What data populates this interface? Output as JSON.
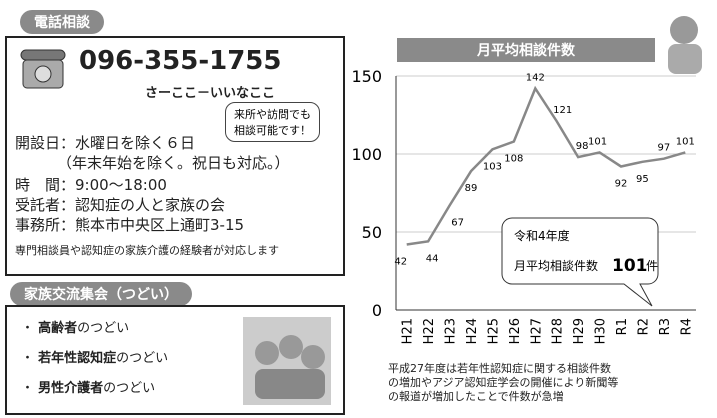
{
  "phone": {
    "badge": "電話相談",
    "number": "096-355-1755",
    "reading": "さーここ－いいなここ",
    "bubble": [
      "来所や訪問でも",
      "相談可能です！"
    ],
    "lines": [
      "開設日：水曜日を除く６日",
      "（年末年始を除く。祝日も対応。）",
      "時　間：9:00～18:00",
      "受託者：認知症の人と家族の会",
      "事務所：熊本市中央区上通町3-15"
    ],
    "footnote": "専門相談員や認知症の家族介護の経験者が対応します"
  },
  "gathering": {
    "badge": "家族交流集会（つどい）",
    "items": [
      [
        "高齢者",
        "のつどい"
      ],
      [
        "若年性認知症",
        "のつどい"
      ],
      [
        "男性介護者",
        "のつどい"
      ]
    ]
  },
  "chart_data": {
    "type": "line",
    "title": "月平均相談件数",
    "categories": [
      "H21",
      "H22",
      "H23",
      "H24",
      "H25",
      "H26",
      "H27",
      "H28",
      "H29",
      "H30",
      "R1",
      "R2",
      "R3",
      "R4"
    ],
    "values": [
      42,
      44,
      67,
      89,
      103,
      108,
      142,
      121,
      98,
      101,
      92,
      95,
      97,
      101
    ],
    "color": "#888888",
    "ylim": [
      0,
      150
    ],
    "yticks": [
      0,
      50,
      100,
      150
    ],
    "callout": {
      "line1": "令和4年度",
      "line2": "月平均相談件数",
      "value": "101",
      "unit": "件"
    },
    "note": [
      "平成27年度は若年性認知症に関する相談件数",
      "の増加やアジア認知症学会の開催により新聞等",
      "の報道が増加したことで件数が急増"
    ]
  }
}
